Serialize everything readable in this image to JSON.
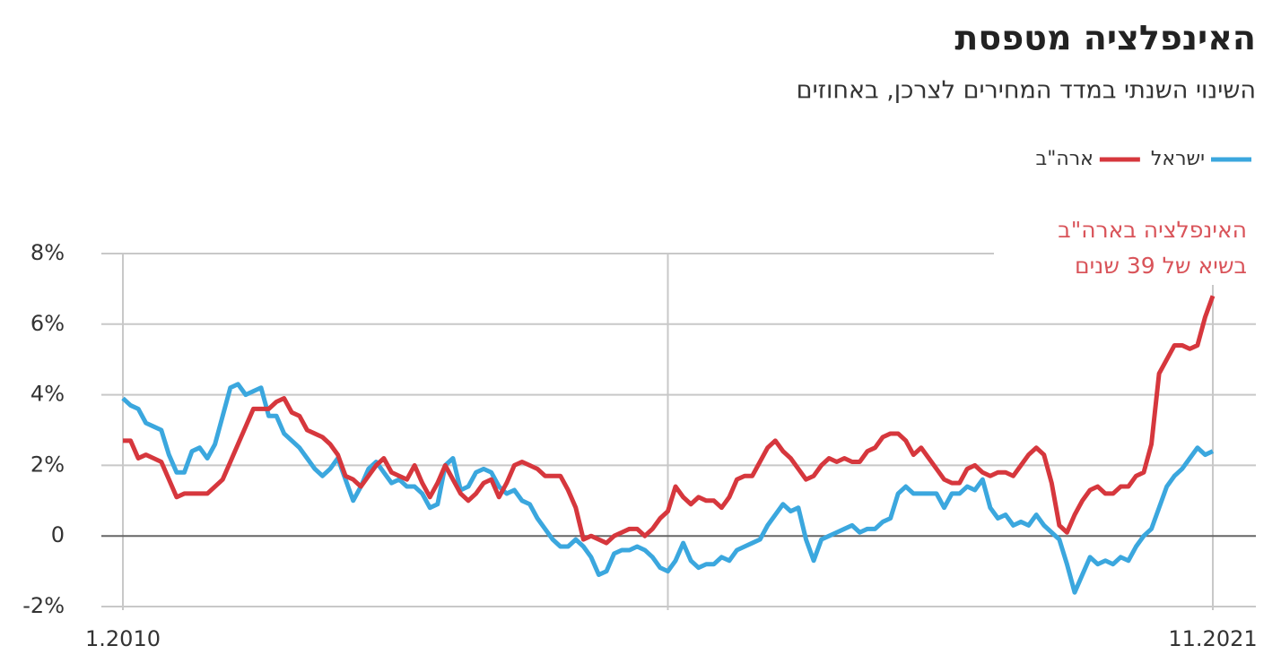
{
  "chart_data": {
    "type": "line",
    "title": "האינפלציה מטפסת",
    "subtitle": "השינוי השנתי במדד המחירים לצרכן, באחוזים",
    "annotation": [
      "האינפלציה בארה\"ב",
      "בשיא של 39 שנים"
    ],
    "categories": [
      "1.2010",
      null,
      null,
      null,
      null,
      null,
      null,
      null,
      null,
      null,
      null,
      null,
      null,
      null,
      null,
      null,
      null,
      null,
      null,
      null,
      null,
      null,
      null,
      null,
      null,
      null,
      null,
      null,
      null,
      null,
      null,
      null,
      null,
      null,
      null,
      null,
      null,
      null,
      null,
      null,
      null,
      null,
      null,
      null,
      null,
      null,
      null,
      null,
      null,
      null,
      null,
      null,
      null,
      null,
      null,
      null,
      null,
      null,
      null,
      null,
      null,
      null,
      null,
      null,
      null,
      null,
      null,
      null,
      null,
      null,
      null,
      null,
      null,
      null,
      null,
      null,
      null,
      null,
      null,
      null,
      null,
      null,
      null,
      null,
      null,
      null,
      null,
      null,
      null,
      null,
      null,
      null,
      null,
      null,
      null,
      null,
      null,
      null,
      null,
      null,
      null,
      null,
      null,
      null,
      null,
      null,
      null,
      null,
      null,
      null,
      null,
      null,
      null,
      null,
      null,
      null,
      null,
      null,
      null,
      null,
      null,
      null,
      null,
      null,
      null,
      null,
      null,
      null,
      null,
      null,
      null,
      null,
      null,
      null,
      null,
      null,
      null,
      null,
      null,
      null,
      null,
      null,
      "11.2021"
    ],
    "series": [
      {
        "name": "ישראל",
        "color": "#3ba7de",
        "values": [
          3.9,
          3.7,
          3.6,
          3.2,
          3.1,
          3.0,
          2.3,
          1.8,
          1.8,
          2.4,
          2.5,
          2.2,
          2.6,
          3.4,
          4.2,
          4.3,
          4.0,
          4.1,
          4.2,
          3.4,
          3.4,
          2.9,
          2.7,
          2.5,
          2.2,
          1.9,
          1.7,
          1.9,
          2.2,
          1.6,
          1.0,
          1.4,
          1.9,
          2.1,
          1.8,
          1.5,
          1.6,
          1.4,
          1.4,
          1.2,
          0.8,
          0.9,
          2.0,
          2.2,
          1.3,
          1.4,
          1.8,
          1.9,
          1.8,
          1.4,
          1.2,
          1.3,
          1.0,
          0.9,
          0.5,
          0.2,
          -0.1,
          -0.3,
          -0.3,
          -0.1,
          -0.3,
          -0.6,
          -1.1,
          -1.0,
          -0.5,
          -0.4,
          -0.4,
          -0.3,
          -0.4,
          -0.6,
          -0.9,
          -1.0,
          -0.7,
          -0.2,
          -0.7,
          -0.9,
          -0.8,
          -0.8,
          -0.6,
          -0.7,
          -0.4,
          -0.3,
          -0.2,
          -0.1,
          0.3,
          0.6,
          0.9,
          0.7,
          0.8,
          -0.1,
          -0.7,
          -0.1,
          0.0,
          0.1,
          0.2,
          0.3,
          0.1,
          0.2,
          0.2,
          0.4,
          0.5,
          1.2,
          1.4,
          1.2,
          1.2,
          1.2,
          1.2,
          0.8,
          1.2,
          1.2,
          1.4,
          1.3,
          1.6,
          0.8,
          0.5,
          0.6,
          0.3,
          0.4,
          0.3,
          0.6,
          0.3,
          0.1,
          -0.1,
          -0.8,
          -1.6,
          -1.1,
          -0.6,
          -0.8,
          -0.7,
          -0.8,
          -0.6,
          -0.7,
          -0.3,
          0.0,
          0.2,
          0.8,
          1.4,
          1.7,
          1.9,
          2.2,
          2.5,
          2.3,
          2.4
        ]
      },
      {
        "name": "ארה\"ב",
        "color": "#d6373d",
        "values": [
          2.7,
          2.7,
          2.2,
          2.3,
          2.2,
          2.1,
          1.6,
          1.1,
          1.2,
          1.2,
          1.2,
          1.2,
          1.4,
          1.6,
          2.1,
          2.6,
          3.1,
          3.6,
          3.6,
          3.6,
          3.8,
          3.9,
          3.5,
          3.4,
          3.0,
          2.9,
          2.8,
          2.6,
          2.3,
          1.7,
          1.6,
          1.4,
          1.7,
          2.0,
          2.2,
          1.8,
          1.7,
          1.6,
          2.0,
          1.5,
          1.1,
          1.5,
          2.0,
          1.6,
          1.2,
          1.0,
          1.2,
          1.5,
          1.6,
          1.1,
          1.5,
          2.0,
          2.1,
          2.0,
          1.9,
          1.7,
          1.7,
          1.7,
          1.3,
          0.8,
          -0.1,
          0.0,
          -0.1,
          -0.2,
          0.0,
          0.1,
          0.2,
          0.2,
          0.0,
          0.2,
          0.5,
          0.7,
          1.4,
          1.1,
          0.9,
          1.1,
          1.0,
          1.0,
          0.8,
          1.1,
          1.6,
          1.7,
          1.7,
          2.1,
          2.5,
          2.7,
          2.4,
          2.2,
          1.9,
          1.6,
          1.7,
          2.0,
          2.2,
          2.1,
          2.2,
          2.1,
          2.1,
          2.4,
          2.5,
          2.8,
          2.9,
          2.9,
          2.7,
          2.3,
          2.5,
          2.2,
          1.9,
          1.6,
          1.5,
          1.5,
          1.9,
          2.0,
          1.8,
          1.7,
          1.8,
          1.8,
          1.7,
          2.0,
          2.3,
          2.5,
          2.3,
          1.5,
          0.3,
          0.1,
          0.6,
          1.0,
          1.3,
          1.4,
          1.2,
          1.2,
          1.4,
          1.4,
          1.7,
          1.8,
          2.6,
          4.6,
          5.0,
          5.4,
          5.4,
          5.3,
          5.4,
          6.2,
          6.8
        ]
      }
    ],
    "ylim": [
      -2,
      8
    ],
    "yticks": [
      {
        "value": 8,
        "label": "8%"
      },
      {
        "value": 6,
        "label": "6%"
      },
      {
        "value": 4,
        "label": "4%"
      },
      {
        "value": 2,
        "label": "2%"
      },
      0,
      {
        "value": -2,
        "label": "-2%"
      }
    ],
    "grid": true
  }
}
